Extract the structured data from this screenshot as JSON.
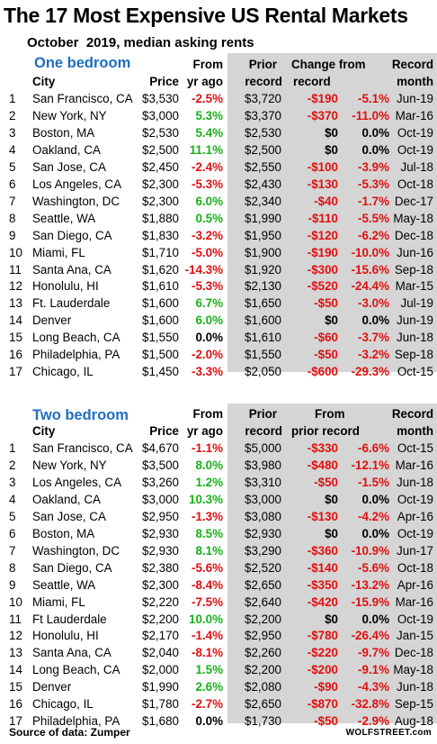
{
  "title": "The 17 Most Expensive US Rental Markets",
  "subtitle": "October  2019, median asking rents",
  "colors": {
    "negative": "#e01010",
    "positive": "#18b218",
    "section_heading": "#1f6fbf",
    "shaded_panel": "#d5d5d5"
  },
  "one_bedroom": {
    "section_label": "One bedroom",
    "headers": {
      "city": "City",
      "price": "Price",
      "from": "From",
      "yr_ago": "yr ago",
      "prior": "Prior",
      "record": "record",
      "change_from": "Change from",
      "change_record": "record",
      "record_top": "Record",
      "month": "month"
    },
    "rows": [
      [
        "1",
        "San Francisco, CA",
        "$3,530",
        "-2.5%",
        "$3,720",
        "-$190",
        "-5.1%",
        "Jun-19"
      ],
      [
        "2",
        "New York, NY",
        "$3,000",
        "5.3%",
        "$3,370",
        "-$370",
        "-11.0%",
        "Mar-16"
      ],
      [
        "3",
        "Boston, MA",
        "$2,530",
        "5.4%",
        "$2,530",
        "$0",
        "0.0%",
        "Oct-19"
      ],
      [
        "4",
        "Oakland, CA",
        "$2,500",
        "11.1%",
        "$2,500",
        "$0",
        "0.0%",
        "Oct-19"
      ],
      [
        "5",
        "San Jose, CA",
        "$2,450",
        "-2.4%",
        "$2,550",
        "-$100",
        "-3.9%",
        "Jul-18"
      ],
      [
        "6",
        "Los Angeles, CA",
        "$2,300",
        "-5.3%",
        "$2,430",
        "-$130",
        "-5.3%",
        "Oct-18"
      ],
      [
        "7",
        "Washington, DC",
        "$2,300",
        "6.0%",
        "$2,340",
        "-$40",
        "-1.7%",
        "Dec-17"
      ],
      [
        "8",
        "Seattle, WA",
        "$1,880",
        "0.5%",
        "$1,990",
        "-$110",
        "-5.5%",
        "May-18"
      ],
      [
        "9",
        "San Diego, CA",
        "$1,830",
        "-3.2%",
        "$1,950",
        "-$120",
        "-6.2%",
        "Dec-18"
      ],
      [
        "10",
        "Miami, FL",
        "$1,710",
        "-5.0%",
        "$1,900",
        "-$190",
        "-10.0%",
        "Jun-16"
      ],
      [
        "11",
        "Santa Ana, CA",
        "$1,620",
        "-14.3%",
        "$1,920",
        "-$300",
        "-15.6%",
        "Sep-18"
      ],
      [
        "12",
        "Honolulu, HI",
        "$1,610",
        "-5.3%",
        "$2,130",
        "-$520",
        "-24.4%",
        "Mar-15"
      ],
      [
        "13",
        "Ft. Lauderdale",
        "$1,600",
        "6.7%",
        "$1,650",
        "-$50",
        "-3.0%",
        "Jul-19"
      ],
      [
        "14",
        "Denver",
        "$1,600",
        "6.0%",
        "$1,600",
        "$0",
        "0.0%",
        "Jun-19"
      ],
      [
        "15",
        "Long Beach, CA",
        "$1,550",
        "0.0%",
        "$1,610",
        "-$60",
        "-3.7%",
        "Jun-18"
      ],
      [
        "16",
        "Philadelphia, PA",
        "$1,500",
        "-2.0%",
        "$1,550",
        "-$50",
        "-3.2%",
        "Sep-18"
      ],
      [
        "17",
        "Chicago, IL",
        "$1,450",
        "-3.3%",
        "$2,050",
        "-$600",
        "-29.3%",
        "Oct-15"
      ]
    ]
  },
  "two_bedroom": {
    "section_label": "Two bedroom",
    "headers": {
      "city": "City",
      "price": "Price",
      "from": "From",
      "yr_ago": "yr ago",
      "prior": "Prior",
      "record": "record",
      "from_top": "From",
      "prior_record": "prior record",
      "record_top": "Record",
      "month": "month"
    },
    "rows": [
      [
        "1",
        "San Francisco, CA",
        "$4,670",
        "-1.1%",
        "$5,000",
        "-$330",
        "-6.6%",
        "Oct-15"
      ],
      [
        "2",
        "New York, NY",
        "$3,500",
        "8.0%",
        "$3,980",
        "-$480",
        "-12.1%",
        "Mar-16"
      ],
      [
        "3",
        "Los Angeles, CA",
        "$3,260",
        "1.2%",
        "$3,310",
        "-$50",
        "-1.5%",
        "Jun-18"
      ],
      [
        "4",
        "Oakland, CA",
        "$3,000",
        "10.3%",
        "$3,000",
        "$0",
        "0.0%",
        "Oct-19"
      ],
      [
        "5",
        "San Jose, CA",
        "$2,950",
        "-1.3%",
        "$3,080",
        "-$130",
        "-4.2%",
        "Apr-16"
      ],
      [
        "6",
        "Boston, MA",
        "$2,930",
        "8.5%",
        "$2,930",
        "$0",
        "0.0%",
        "Oct-19"
      ],
      [
        "7",
        "Washington, DC",
        "$2,930",
        "8.1%",
        "$3,290",
        "-$360",
        "-10.9%",
        "Jun-17"
      ],
      [
        "8",
        "San Diego, CA",
        "$2,380",
        "-5.6%",
        "$2,520",
        "-$140",
        "-5.6%",
        "Oct-18"
      ],
      [
        "9",
        "Seattle, WA",
        "$2,300",
        "-8.4%",
        "$2,650",
        "-$350",
        "-13.2%",
        "Apr-16"
      ],
      [
        "10",
        "Miami, FL",
        "$2,220",
        "-7.5%",
        "$2,640",
        "-$420",
        "-15.9%",
        "Mar-16"
      ],
      [
        "11",
        "Ft Lauderdale",
        "$2,200",
        "10.0%",
        "$2,200",
        "$0",
        "0.0%",
        "Oct-19"
      ],
      [
        "12",
        "Honolulu, HI",
        "$2,170",
        "-1.4%",
        "$2,950",
        "-$780",
        "-26.4%",
        "Jan-15"
      ],
      [
        "13",
        "Santa Ana, CA",
        "$2,040",
        "-8.1%",
        "$2,260",
        "-$220",
        "-9.7%",
        "Dec-18"
      ],
      [
        "14",
        "Long Beach, CA",
        "$2,000",
        "1.5%",
        "$2,200",
        "-$200",
        "-9.1%",
        "May-18"
      ],
      [
        "15",
        "Denver",
        "$1,990",
        "2.6%",
        "$2,080",
        "-$90",
        "-4.3%",
        "Jun-18"
      ],
      [
        "16",
        "Chicago, IL",
        "$1,780",
        "-2.7%",
        "$2,650",
        "-$870",
        "-32.8%",
        "Sep-15"
      ],
      [
        "17",
        "Philadelphia, PA",
        "$1,680",
        "0.0%",
        "$1,730",
        "-$50",
        "-2.9%",
        "Aug-18"
      ]
    ]
  },
  "footer": {
    "source": "Source of data: Zumper",
    "brand": "WOLFSTREET.com"
  }
}
